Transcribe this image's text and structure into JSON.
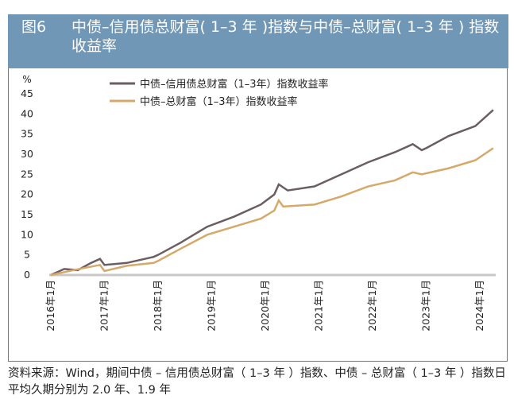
{
  "header": {
    "figure_no": "图6",
    "title": "中债–信用债总财富( 1–3 年 )指数与中债–总财富( 1–3 年 ) 指数收益率"
  },
  "chart_data": {
    "type": "line",
    "ylabel": "%",
    "ylim": [
      0,
      45
    ],
    "yticks": [
      0,
      5,
      10,
      15,
      20,
      25,
      30,
      35,
      40,
      45
    ],
    "xticks": [
      "2016年1月",
      "2017年1月",
      "2018年1月",
      "2019年1月",
      "2020年1月",
      "2021年1月",
      "2022年1月",
      "2023年1月",
      "2024年1月"
    ],
    "legend_position": "top",
    "series": [
      {
        "name": "中债–信用债总财富（1–3年）指数收益率",
        "color": "#6b5e63",
        "points": [
          [
            "2016-01",
            0
          ],
          [
            "2016-04",
            1.5
          ],
          [
            "2016-07",
            1.2
          ],
          [
            "2016-10",
            3
          ],
          [
            "2016-12",
            4
          ],
          [
            "2017-01",
            2.5
          ],
          [
            "2017-06",
            3
          ],
          [
            "2017-12",
            4.5
          ],
          [
            "2018-01",
            5
          ],
          [
            "2018-06",
            8
          ],
          [
            "2018-12",
            12
          ],
          [
            "2019-06",
            14.5
          ],
          [
            "2019-12",
            17.5
          ],
          [
            "2020-03",
            20
          ],
          [
            "2020-04",
            22.5
          ],
          [
            "2020-06",
            21
          ],
          [
            "2020-12",
            22
          ],
          [
            "2021-06",
            25
          ],
          [
            "2021-12",
            28
          ],
          [
            "2022-06",
            30.5
          ],
          [
            "2022-10",
            32.5
          ],
          [
            "2022-12",
            31
          ],
          [
            "2023-01",
            31.5
          ],
          [
            "2023-06",
            34.5
          ],
          [
            "2023-12",
            37
          ],
          [
            "2024-04",
            41
          ]
        ]
      },
      {
        "name": "中债–总财富（1–3年）指数收益率",
        "color": "#d4a96a",
        "points": [
          [
            "2016-01",
            0
          ],
          [
            "2016-06",
            1.2
          ],
          [
            "2016-12",
            2.5
          ],
          [
            "2017-01",
            1
          ],
          [
            "2017-06",
            2.3
          ],
          [
            "2017-12",
            3
          ],
          [
            "2018-01",
            3.5
          ],
          [
            "2018-06",
            6.5
          ],
          [
            "2018-12",
            10
          ],
          [
            "2019-06",
            12
          ],
          [
            "2019-12",
            14
          ],
          [
            "2020-03",
            16
          ],
          [
            "2020-04",
            18.5
          ],
          [
            "2020-05",
            17
          ],
          [
            "2020-12",
            17.5
          ],
          [
            "2021-06",
            19.5
          ],
          [
            "2021-12",
            22
          ],
          [
            "2022-06",
            23.5
          ],
          [
            "2022-10",
            25.5
          ],
          [
            "2022-12",
            25
          ],
          [
            "2023-06",
            26.5
          ],
          [
            "2023-12",
            28.5
          ],
          [
            "2024-04",
            31.5
          ]
        ]
      }
    ]
  },
  "note": "资料来源：Wind，期间中债 – 信用债总财富（ 1–3 年 ）指数、中债 – 总财富（ 1–3 年 ）指数日平均久期分别为 2.0 年、1.9 年"
}
